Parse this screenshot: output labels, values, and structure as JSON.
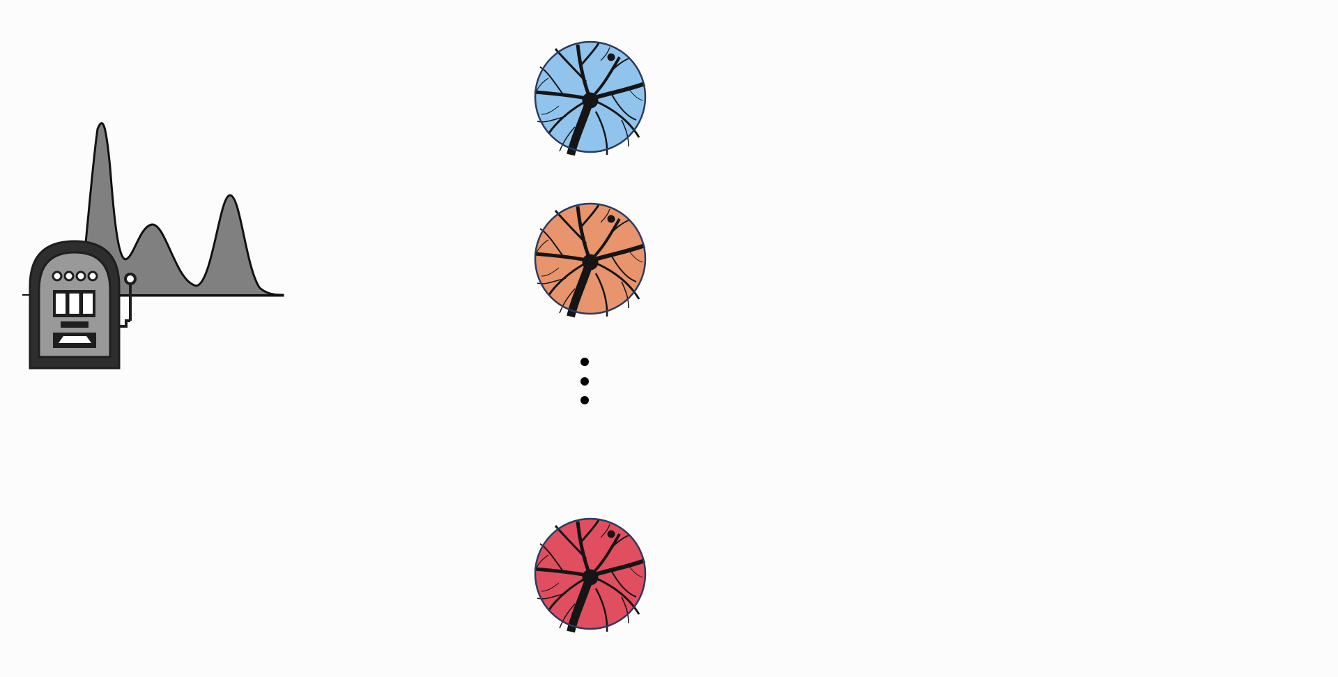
{
  "diagram": {
    "bandit": {
      "icon": "slot-machine-icon",
      "reward_distribution": {
        "type": "multimodal-density",
        "modes": 3,
        "fill_color": "#808080",
        "stroke_color": "#111111"
      }
    },
    "neurons": [
      {
        "icon": "neuron-icon",
        "tint": "#90c4ec"
      },
      {
        "icon": "neuron-icon",
        "tint": "#e8946c"
      },
      {
        "icon": "neuron-icon",
        "tint": "#e04e60"
      }
    ],
    "ellipsis": {
      "icon": "vertical-ellipsis-icon",
      "dot_count": 3
    },
    "colors": {
      "machine_body": "#2e2e2e",
      "machine_panel": "#999999",
      "neuron_outline": "#2b3a5e",
      "neuron_branch": "#151515"
    }
  }
}
